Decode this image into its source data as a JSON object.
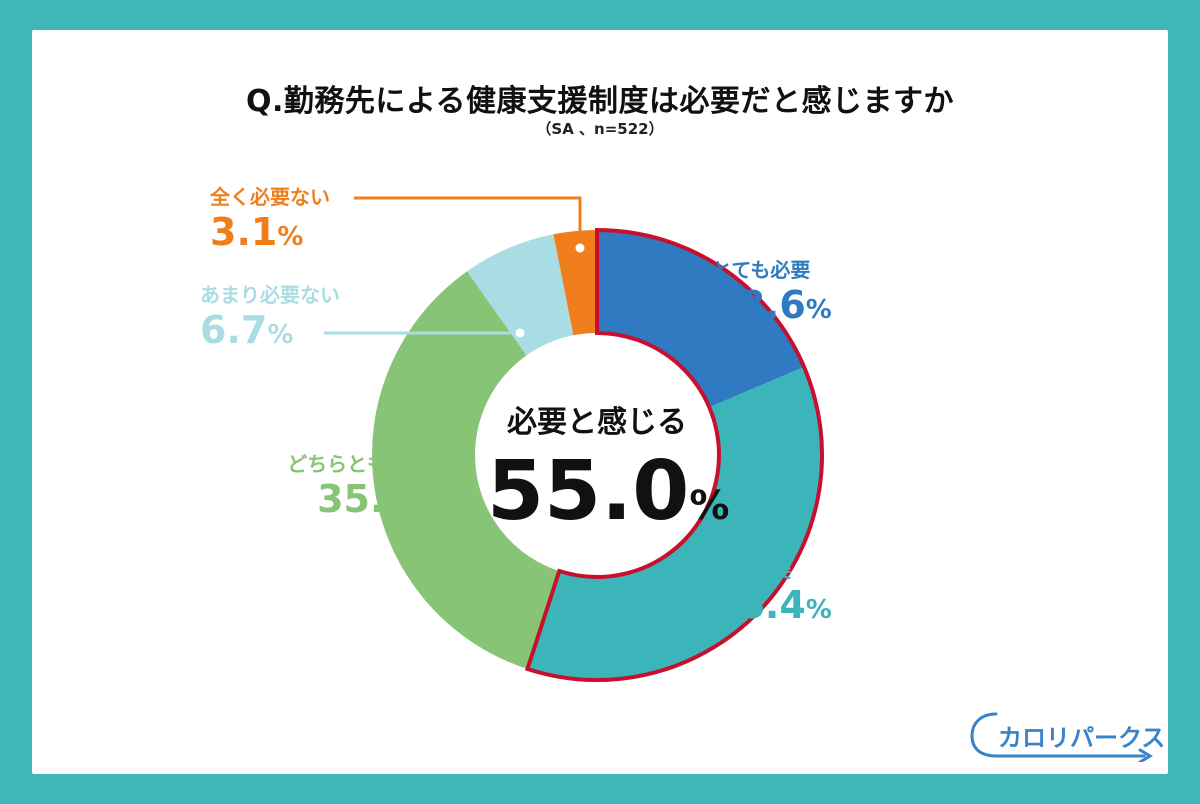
{
  "chart_data": {
    "type": "pie",
    "title": "Q.勤務先による健康支援制度は必要だと感じますか",
    "subtitle": "（SA 、n=522）",
    "unit": "%",
    "slices": [
      {
        "name": "とても必要",
        "value": 18.6,
        "color": "#2f7ac0"
      },
      {
        "name": "やや必要",
        "value": 36.4,
        "color": "#3bb5b9"
      },
      {
        "name": "どちらともいえない",
        "value": 35.2,
        "color": "#87c475"
      },
      {
        "name": "あまり必要ない",
        "value": 6.7,
        "color": "#a9dde3"
      },
      {
        "name": "全く必要ない",
        "value": 3.1,
        "color": "#f07e1d"
      }
    ],
    "highlight": {
      "label": "必要と感じる",
      "value": 55.0,
      "value_text": "55.0",
      "outline_color": "#c8102e"
    }
  },
  "logo": {
    "text": "カロリパークス",
    "color": "#3a83c7"
  }
}
